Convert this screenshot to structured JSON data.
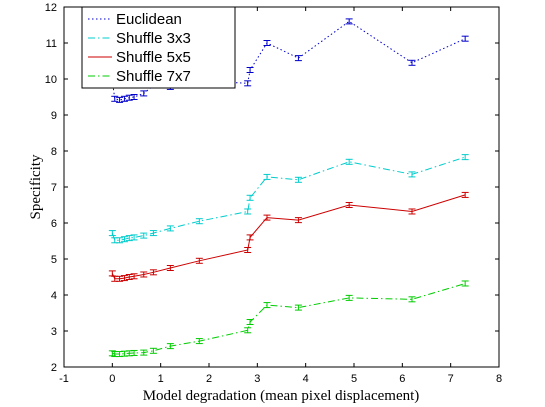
{
  "chart_data": {
    "type": "line",
    "xlabel": "Model degradation (mean pixel displacement)",
    "ylabel": "Specificity",
    "xlim": [
      -1,
      8
    ],
    "ylim": [
      2,
      12
    ],
    "xticks": [
      "-1",
      "0",
      "1",
      "2",
      "3",
      "4",
      "5",
      "6",
      "7",
      "8"
    ],
    "yticks": [
      "2",
      "3",
      "4",
      "5",
      "6",
      "7",
      "8",
      "9",
      "10",
      "11",
      "12"
    ],
    "grid": false,
    "legend": "top-left",
    "x": [
      0,
      0.05,
      0.15,
      0.25,
      0.35,
      0.45,
      0.65,
      0.85,
      1.2,
      1.8,
      2.8,
      2.85,
      3.2,
      3.85,
      4.9,
      6.2,
      7.3
    ],
    "series": [
      {
        "name": "Euclidean",
        "color": "#0000cc",
        "style": "dotted",
        "values": [
          9.95,
          9.45,
          9.42,
          9.45,
          9.48,
          9.5,
          9.6,
          9.82,
          9.78,
          9.95,
          9.88,
          10.25,
          11.0,
          10.58,
          11.6,
          10.45,
          11.12
        ]
      },
      {
        "name": "Shuffle 3x3",
        "color": "#00cccc",
        "style": "dashdot",
        "values": [
          5.72,
          5.52,
          5.52,
          5.55,
          5.58,
          5.6,
          5.65,
          5.72,
          5.85,
          6.05,
          6.32,
          6.7,
          7.28,
          7.2,
          7.7,
          7.35,
          7.83
        ]
      },
      {
        "name": "Shuffle 5x5",
        "color": "#cc0000",
        "style": "solid",
        "values": [
          4.6,
          4.45,
          4.45,
          4.47,
          4.5,
          4.52,
          4.57,
          4.63,
          4.75,
          4.95,
          5.25,
          5.6,
          6.15,
          6.08,
          6.5,
          6.32,
          6.78
        ]
      },
      {
        "name": "Shuffle 7x7",
        "color": "#00cc00",
        "style": "dashdot",
        "values": [
          2.38,
          2.36,
          2.36,
          2.37,
          2.38,
          2.39,
          2.4,
          2.45,
          2.58,
          2.72,
          3.02,
          3.25,
          3.72,
          3.65,
          3.92,
          3.88,
          4.32
        ]
      }
    ]
  }
}
